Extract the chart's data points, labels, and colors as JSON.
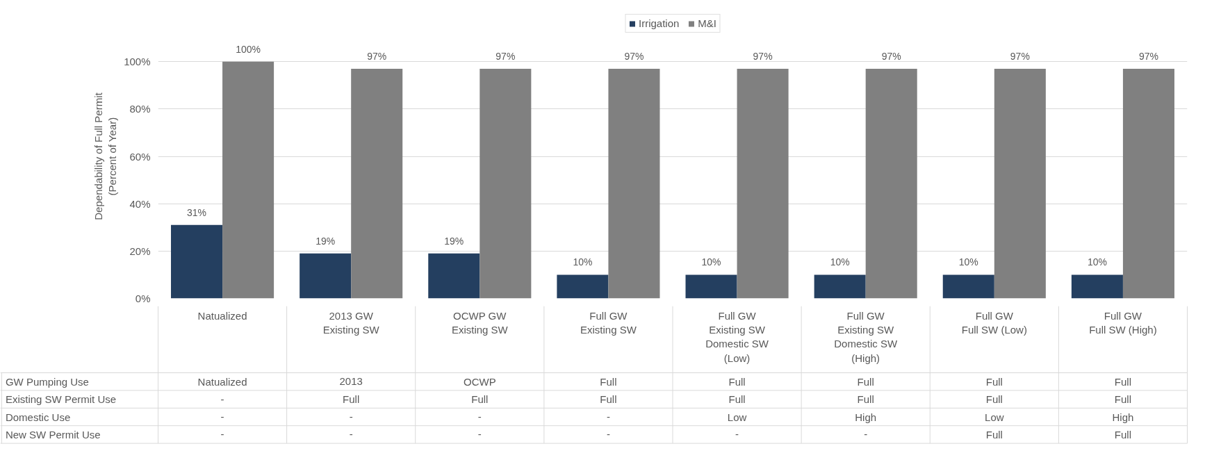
{
  "chart_data": {
    "type": "bar",
    "ylabel": "Dependability of Full Permit\n(Percent of Year)",
    "categories": [
      "Natualized",
      "2013 GW\nExisting SW",
      "OCWP GW\nExisting SW",
      "Full GW\nExisting SW",
      "Full GW\nExisting SW\nDomestic SW\n(Low)",
      "Full GW\nExisting SW\nDomestic SW\n(High)",
      "Full GW\nFull SW (Low)",
      "Full GW\nFull SW (High)"
    ],
    "series": [
      {
        "name": "Irrigation",
        "color": "#243f60",
        "values": [
          31,
          19,
          19,
          10,
          10,
          10,
          10,
          10
        ],
        "value_labels": [
          "31%",
          "19%",
          "19%",
          "10%",
          "10%",
          "10%",
          "10%",
          "10%"
        ]
      },
      {
        "name": "M&I",
        "color": "#808080",
        "values": [
          100,
          97,
          97,
          97,
          97,
          97,
          97,
          97
        ],
        "value_labels": [
          "100%",
          "97%",
          "97%",
          "97%",
          "97%",
          "97%",
          "97%",
          "97%"
        ]
      }
    ],
    "ylim": [
      0,
      120
    ],
    "yticks": [
      {
        "value": 0,
        "label": "0%"
      },
      {
        "value": 20,
        "label": "20%"
      },
      {
        "value": 40,
        "label": "40%"
      },
      {
        "value": 60,
        "label": "60%"
      },
      {
        "value": 80,
        "label": "80%"
      },
      {
        "value": 100,
        "label": "100%"
      }
    ],
    "grid": "y",
    "legend": "top",
    "annotations": [
      "GW Pumping Use",
      "Natualized",
      "2013",
      "OCWP",
      "Full",
      "Full",
      "Full",
      "Full",
      "Full",
      "Existing SW Permit Use",
      "-",
      "Full",
      "Full",
      "Full",
      "Full",
      "Full",
      "Full",
      "Full",
      "Domestic Use",
      "-",
      "-",
      "-",
      "-",
      "Low",
      "High",
      "Low",
      "High",
      "New SW Permit Use",
      "-",
      "-",
      "-",
      "-",
      "-",
      "-",
      "Full",
      "Full"
    ]
  }
}
